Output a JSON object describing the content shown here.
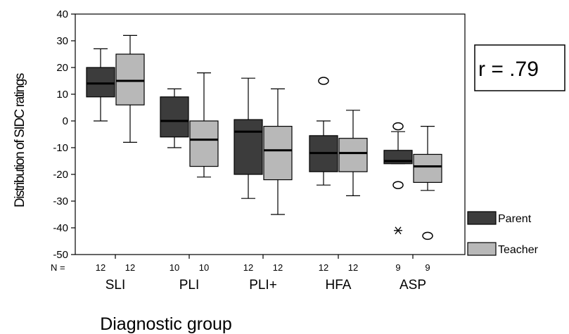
{
  "chart_data": {
    "type": "boxplot",
    "xlabel": "Diagnostic group",
    "ylabel": "Distribution of SIDC ratings",
    "ylim": [
      -50,
      40
    ],
    "yticks": [
      40,
      30,
      20,
      10,
      0,
      -10,
      -20,
      -30,
      -40,
      -50
    ],
    "n_prefix": "N =",
    "annotation": "r = .79",
    "legend_position": "right",
    "categories": [
      "SLI",
      "PLI",
      "PLI+",
      "HFA",
      "ASP"
    ],
    "series": [
      {
        "name": "Parent",
        "color": "#3c3c3c",
        "n": [
          "12",
          "10",
          "12",
          "12",
          "9"
        ],
        "boxes": [
          {
            "min": 0,
            "q1": 9,
            "median": 14,
            "q3": 20,
            "max": 27,
            "outliers": [],
            "extremes": []
          },
          {
            "min": -10,
            "q1": -6,
            "median": 0,
            "q3": 9,
            "max": 12,
            "outliers": [],
            "extremes": []
          },
          {
            "min": -29,
            "q1": -20,
            "median": -4,
            "q3": 0.5,
            "max": 16,
            "outliers": [],
            "extremes": []
          },
          {
            "min": -24,
            "q1": -19,
            "median": -12,
            "q3": -5.5,
            "max": 0,
            "outliers": [
              15
            ],
            "extremes": []
          },
          {
            "min": -16,
            "q1": -16,
            "median": -15,
            "q3": -11,
            "max": -4,
            "outliers": [
              -2,
              -24
            ],
            "extremes": [
              -41
            ]
          }
        ]
      },
      {
        "name": "Teacher",
        "color": "#b8b8b8",
        "n": [
          "12",
          "10",
          "12",
          "12",
          "9"
        ],
        "boxes": [
          {
            "min": -8,
            "q1": 6,
            "median": 15,
            "q3": 25,
            "max": 32,
            "outliers": [],
            "extremes": []
          },
          {
            "min": -21,
            "q1": -17,
            "median": -7,
            "q3": 0,
            "max": 18,
            "outliers": [],
            "extremes": []
          },
          {
            "min": -35,
            "q1": -22,
            "median": -11,
            "q3": -2,
            "max": 12,
            "outliers": [],
            "extremes": []
          },
          {
            "min": -28,
            "q1": -19,
            "median": -12,
            "q3": -6.5,
            "max": 4,
            "outliers": [],
            "extremes": []
          },
          {
            "min": -26,
            "q1": -23,
            "median": -17,
            "q3": -12.5,
            "max": -2,
            "outliers": [
              -43
            ],
            "extremes": []
          }
        ]
      }
    ]
  }
}
